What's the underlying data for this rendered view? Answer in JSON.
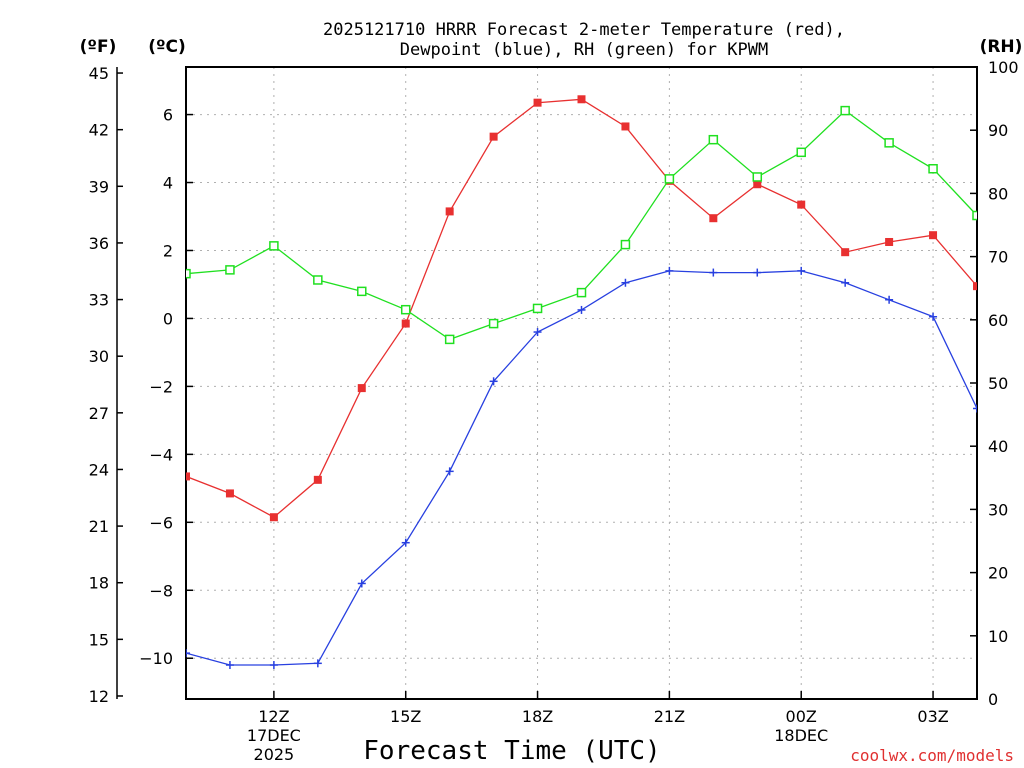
{
  "chart_data": {
    "type": "line",
    "title_line1": "2025121710 HRRR Forecast 2-meter Temperature (red),",
    "title_line2": "Dewpoint (blue), RH (green) for KPWM",
    "xlabel": "Forecast Time (UTC)",
    "credit": "coolwx.com/models",
    "left_outer_unit": "(ºF)",
    "left_inner_unit": "(ºC)",
    "right_unit": "(RH)",
    "x_hours": [
      10,
      11,
      12,
      13,
      14,
      15,
      16,
      17,
      18,
      19,
      20,
      21,
      22,
      23,
      24,
      25,
      26,
      27,
      28
    ],
    "x_range": [
      10,
      28
    ],
    "x_ticks": [
      {
        "hour": 12,
        "lines": [
          "12Z",
          "17DEC",
          "2025"
        ]
      },
      {
        "hour": 15,
        "lines": [
          "15Z"
        ]
      },
      {
        "hour": 18,
        "lines": [
          "18Z"
        ]
      },
      {
        "hour": 21,
        "lines": [
          "21Z"
        ]
      },
      {
        "hour": 24,
        "lines": [
          "00Z",
          "18DEC"
        ]
      },
      {
        "hour": 27,
        "lines": [
          "03Z"
        ]
      }
    ],
    "celsius_range": [
      -11.2,
      7.4
    ],
    "celsius_ticks": [
      "-10",
      "-8",
      "-6",
      "-4",
      "-2",
      "0",
      "2",
      "4",
      "6"
    ],
    "fahrenheit_ticks": [
      "12",
      "15",
      "18",
      "21",
      "24",
      "27",
      "30",
      "33",
      "36",
      "39",
      "42",
      "45"
    ],
    "rh_range": [
      0,
      100
    ],
    "rh_ticks": [
      "0",
      "10",
      "20",
      "30",
      "40",
      "50",
      "60",
      "70",
      "80",
      "90",
      "100"
    ],
    "series": [
      {
        "name": "Temperature",
        "axis": "celsius",
        "color": "#e83030",
        "marker": "filled-square",
        "values": [
          -4.65,
          -5.15,
          -5.85,
          -4.75,
          -2.05,
          -0.15,
          3.15,
          5.35,
          6.35,
          6.45,
          5.65,
          4.05,
          2.95,
          3.95,
          3.35,
          1.95,
          2.25,
          2.45,
          0.95
        ]
      },
      {
        "name": "Dewpoint",
        "axis": "celsius",
        "color": "#2840e0",
        "marker": "plus",
        "values": [
          -9.85,
          -10.2,
          -10.2,
          -10.15,
          -7.8,
          -6.6,
          -4.5,
          -1.85,
          -0.4,
          0.25,
          1.05,
          1.4,
          1.35,
          1.35,
          1.4,
          1.05,
          0.55,
          0.05,
          -2.65
        ]
      },
      {
        "name": "RH",
        "axis": "rh",
        "color": "#20e020",
        "marker": "open-square",
        "values": [
          67.3,
          67.9,
          71.7,
          66.3,
          64.5,
          61.6,
          56.9,
          59.4,
          61.8,
          64.3,
          71.9,
          82.3,
          88.5,
          82.6,
          86.5,
          93.1,
          88.0,
          83.9,
          76.5
        ]
      }
    ]
  }
}
